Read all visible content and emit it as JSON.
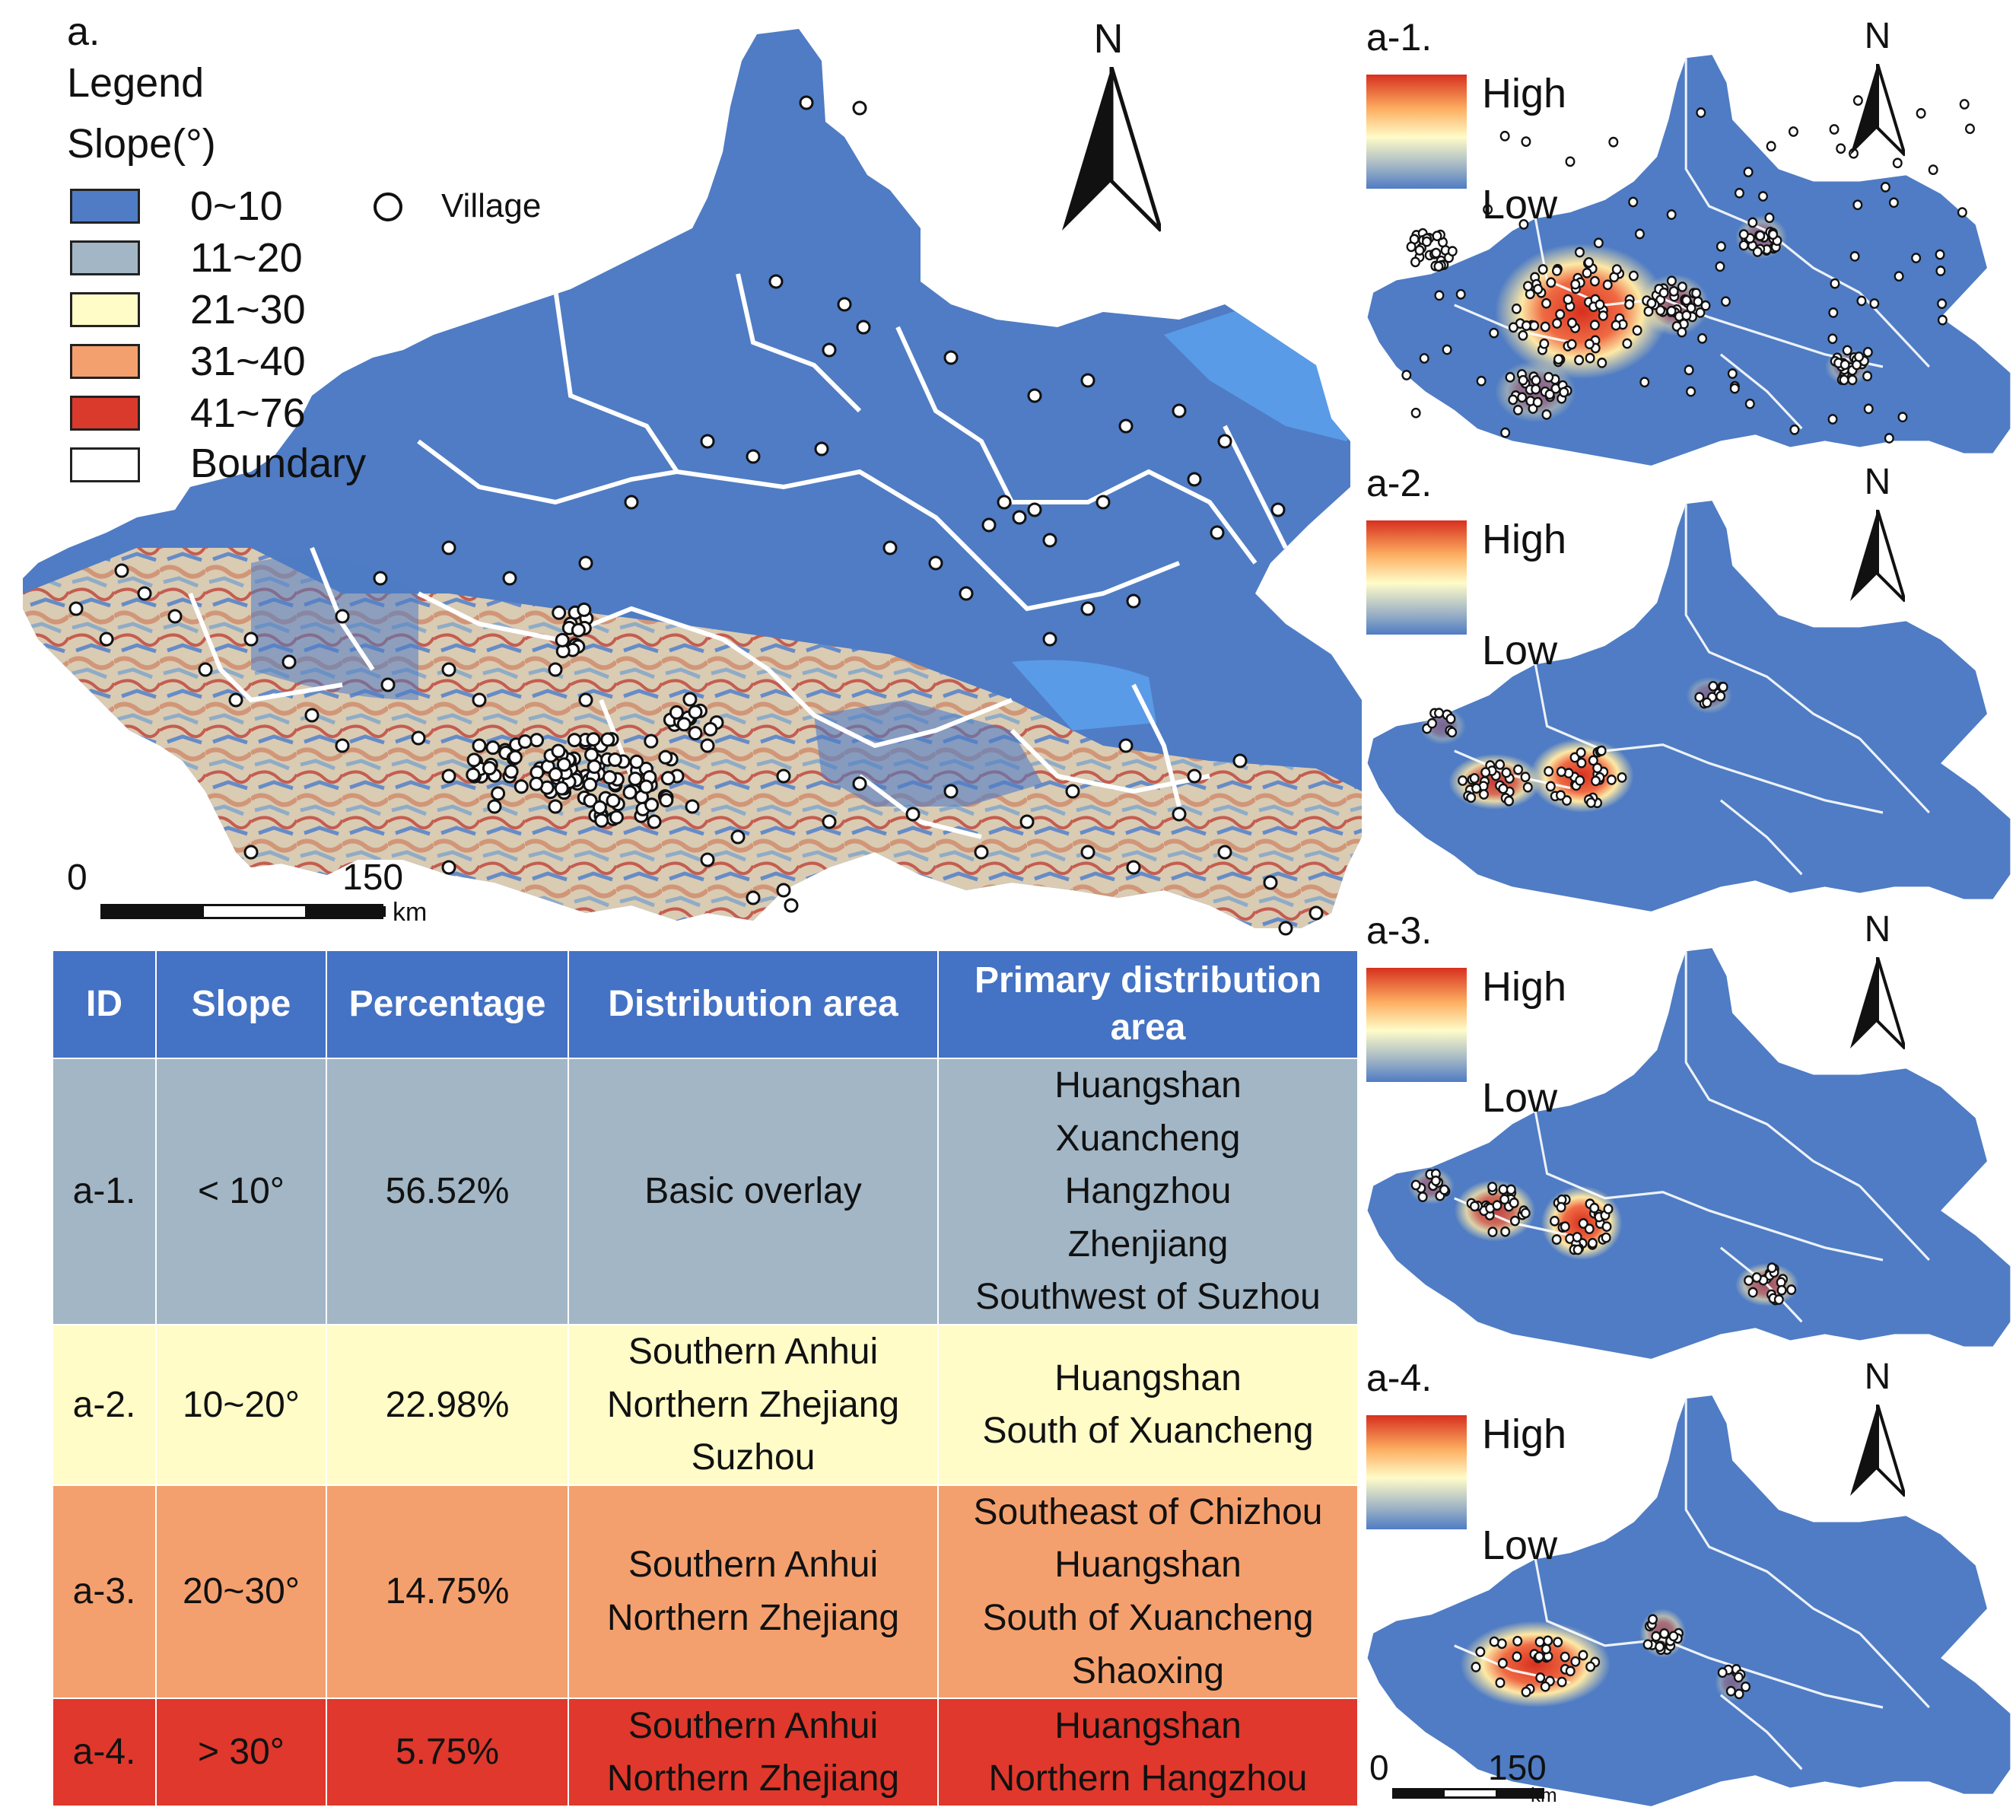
{
  "main_map": {
    "panel_label": "a.",
    "legend_title": "Legend",
    "legend_subtitle": "Slope(°)",
    "legend_items": [
      {
        "label": "0~10",
        "color": "#4f7cc4"
      },
      {
        "label": "11~20",
        "color": "#a2b6c5"
      },
      {
        "label": "21~30",
        "color": "#fffcc8"
      },
      {
        "label": "31~40",
        "color": "#f4a06e"
      },
      {
        "label": "41~76",
        "color": "#d93a2c"
      },
      {
        "label": "Boundary",
        "color": "#ffffff"
      }
    ],
    "village_label": "Village",
    "north_label": "N",
    "scale_start": "0",
    "scale_end": "150",
    "scale_unit": "km"
  },
  "heat_maps": [
    {
      "panel_label": "a-1.",
      "high_label": "High",
      "low_label": "Low",
      "north_label": "N"
    },
    {
      "panel_label": "a-2.",
      "high_label": "High",
      "low_label": "Low",
      "north_label": "N"
    },
    {
      "panel_label": "a-3.",
      "high_label": "High",
      "low_label": "Low",
      "north_label": "N"
    },
    {
      "panel_label": "a-4.",
      "high_label": "High",
      "low_label": "Low",
      "north_label": "N",
      "scale_start": "0",
      "scale_end": "150",
      "scale_unit": "km"
    }
  ],
  "table": {
    "headers": [
      "ID",
      "Slope",
      "Percentage",
      "Distribution area",
      "Primary distribution area"
    ],
    "rows": [
      {
        "id": "a-1.",
        "slope": "< 10°",
        "percentage": "56.52%",
        "distribution": [
          "Basic overlay"
        ],
        "primary": [
          "Huangshan",
          "Xuancheng",
          "Hangzhou",
          "Zhenjiang",
          "Southwest of Suzhou"
        ]
      },
      {
        "id": "a-2.",
        "slope": "10~20°",
        "percentage": "22.98%",
        "distribution": [
          "Southern Anhui",
          "Northern Zhejiang",
          "Suzhou"
        ],
        "primary": [
          "Huangshan",
          "South of Xuancheng"
        ]
      },
      {
        "id": "a-3.",
        "slope": "20~30°",
        "percentage": "14.75%",
        "distribution": [
          "Southern Anhui",
          "Northern Zhejiang"
        ],
        "primary": [
          "Southeast of Chizhou",
          "Huangshan",
          "South of Xuancheng",
          "Shaoxing"
        ]
      },
      {
        "id": "a-4.",
        "slope": "> 30°",
        "percentage": "5.75%",
        "distribution": [
          "Southern Anhui",
          "Northern Zhejiang"
        ],
        "primary": [
          "Huangshan",
          "Northern Hangzhou"
        ]
      }
    ]
  },
  "colors": {
    "map_blue": "#4f7cc4",
    "water_blue": "#5a9be8",
    "header_blue": "#4472c4",
    "high_red": "#d7301f",
    "low_blue": "#4f7cc4"
  }
}
